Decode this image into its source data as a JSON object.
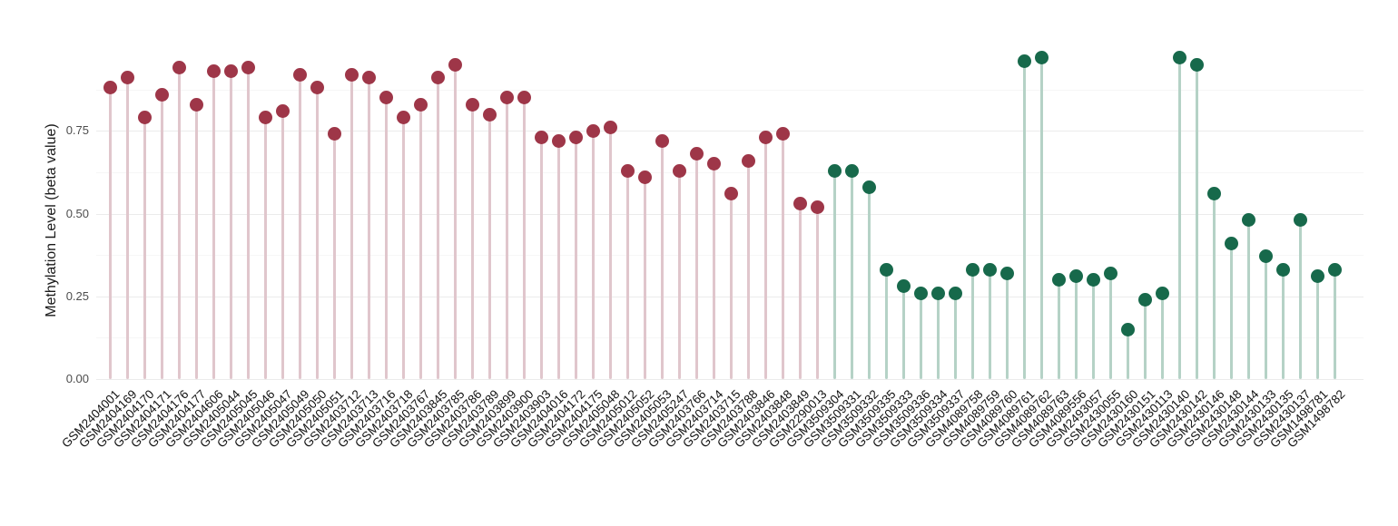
{
  "chart_data": {
    "type": "scatter",
    "variant": "lollipop-stem",
    "title": "",
    "xlabel": "",
    "ylabel": "Methylation Level (beta value)",
    "ylim": [
      0,
      1.0
    ],
    "yticks": [
      0,
      0.25,
      0.5,
      0.75
    ],
    "ytick_labels": [
      "0.00",
      "0.25",
      "0.50",
      "0.75"
    ],
    "minor_gridlines": [
      0.125,
      0.375,
      0.625,
      0.875
    ],
    "grid": "horizontal-light",
    "legend": "none",
    "groups": [
      {
        "name": "red-group",
        "dot_color": "#9e3648",
        "stem_color": "#e0c6cc"
      },
      {
        "name": "green-group",
        "dot_color": "#17694b",
        "stem_color": "#b5d2c6"
      }
    ],
    "samples": [
      {
        "id": "GSM2404001",
        "v": 0.88,
        "g": 0
      },
      {
        "id": "GSM2404169",
        "v": 0.91,
        "g": 0
      },
      {
        "id": "GSM2404170",
        "v": 0.79,
        "g": 0
      },
      {
        "id": "GSM2404171",
        "v": 0.86,
        "g": 0
      },
      {
        "id": "GSM2404176",
        "v": 0.94,
        "g": 0
      },
      {
        "id": "GSM2404177",
        "v": 0.83,
        "g": 0
      },
      {
        "id": "GSM2404606",
        "v": 0.93,
        "g": 0
      },
      {
        "id": "GSM2405044",
        "v": 0.93,
        "g": 0
      },
      {
        "id": "GSM2405045",
        "v": 0.94,
        "g": 0
      },
      {
        "id": "GSM2405046",
        "v": 0.79,
        "g": 0
      },
      {
        "id": "GSM2405047",
        "v": 0.81,
        "g": 0
      },
      {
        "id": "GSM2405049",
        "v": 0.92,
        "g": 0
      },
      {
        "id": "GSM2405050",
        "v": 0.88,
        "g": 0
      },
      {
        "id": "GSM2405051",
        "v": 0.74,
        "g": 0
      },
      {
        "id": "GSM2403712",
        "v": 0.92,
        "g": 0
      },
      {
        "id": "GSM2403713",
        "v": 0.91,
        "g": 0
      },
      {
        "id": "GSM2403716",
        "v": 0.85,
        "g": 0
      },
      {
        "id": "GSM2403718",
        "v": 0.79,
        "g": 0
      },
      {
        "id": "GSM2403767",
        "v": 0.83,
        "g": 0
      },
      {
        "id": "GSM2403845",
        "v": 0.91,
        "g": 0
      },
      {
        "id": "GSM2403785",
        "v": 0.95,
        "g": 0
      },
      {
        "id": "GSM2403786",
        "v": 0.83,
        "g": 0
      },
      {
        "id": "GSM2403789",
        "v": 0.8,
        "g": 0
      },
      {
        "id": "GSM2403899",
        "v": 0.85,
        "g": 0
      },
      {
        "id": "GSM2403900",
        "v": 0.85,
        "g": 0
      },
      {
        "id": "GSM2403903",
        "v": 0.73,
        "g": 0
      },
      {
        "id": "GSM2404016",
        "v": 0.72,
        "g": 0
      },
      {
        "id": "GSM2404172",
        "v": 0.73,
        "g": 0
      },
      {
        "id": "GSM2404175",
        "v": 0.75,
        "g": 0
      },
      {
        "id": "GSM2405048",
        "v": 0.76,
        "g": 0
      },
      {
        "id": "GSM2405012",
        "v": 0.63,
        "g": 0
      },
      {
        "id": "GSM2405052",
        "v": 0.61,
        "g": 0
      },
      {
        "id": "GSM2405053",
        "v": 0.72,
        "g": 0
      },
      {
        "id": "GSM2405247",
        "v": 0.63,
        "g": 0
      },
      {
        "id": "GSM2403766",
        "v": 0.68,
        "g": 0
      },
      {
        "id": "GSM2403714",
        "v": 0.65,
        "g": 0
      },
      {
        "id": "GSM2403715",
        "v": 0.56,
        "g": 0
      },
      {
        "id": "GSM2403788",
        "v": 0.66,
        "g": 0
      },
      {
        "id": "GSM2403846",
        "v": 0.73,
        "g": 0
      },
      {
        "id": "GSM2403848",
        "v": 0.74,
        "g": 0
      },
      {
        "id": "GSM2403849",
        "v": 0.53,
        "g": 0
      },
      {
        "id": "GSM2290013",
        "v": 0.52,
        "g": 0
      },
      {
        "id": "GSM3509304",
        "v": 0.63,
        "g": 1
      },
      {
        "id": "GSM3509331",
        "v": 0.63,
        "g": 1
      },
      {
        "id": "GSM3509332",
        "v": 0.58,
        "g": 1
      },
      {
        "id": "GSM3509335",
        "v": 0.33,
        "g": 1
      },
      {
        "id": "GSM3509333",
        "v": 0.28,
        "g": 1
      },
      {
        "id": "GSM3509336",
        "v": 0.26,
        "g": 1
      },
      {
        "id": "GSM3509334",
        "v": 0.26,
        "g": 1
      },
      {
        "id": "GSM3509337",
        "v": 0.26,
        "g": 1
      },
      {
        "id": "GSM4089758",
        "v": 0.33,
        "g": 1
      },
      {
        "id": "GSM4089759",
        "v": 0.33,
        "g": 1
      },
      {
        "id": "GSM4089760",
        "v": 0.32,
        "g": 1
      },
      {
        "id": "GSM4089761",
        "v": 0.96,
        "g": 1
      },
      {
        "id": "GSM4089762",
        "v": 0.97,
        "g": 1
      },
      {
        "id": "GSM4089763",
        "v": 0.3,
        "g": 1
      },
      {
        "id": "GSM4089556",
        "v": 0.31,
        "g": 1
      },
      {
        "id": "GSM2493057",
        "v": 0.3,
        "g": 1
      },
      {
        "id": "GSM2430055",
        "v": 0.32,
        "g": 1
      },
      {
        "id": "GSM2430160",
        "v": 0.15,
        "g": 1
      },
      {
        "id": "GSM2430151",
        "v": 0.24,
        "g": 1
      },
      {
        "id": "GSM2430113",
        "v": 0.26,
        "g": 1
      },
      {
        "id": "GSM2430140",
        "v": 0.97,
        "g": 1
      },
      {
        "id": "GSM2430142",
        "v": 0.95,
        "g": 1
      },
      {
        "id": "GSM2430146",
        "v": 0.56,
        "g": 1
      },
      {
        "id": "GSM2430148",
        "v": 0.41,
        "g": 1
      },
      {
        "id": "GSM2430144",
        "v": 0.48,
        "g": 1
      },
      {
        "id": "GSM2430133",
        "v": 0.37,
        "g": 1
      },
      {
        "id": "GSM2430135",
        "v": 0.33,
        "g": 1
      },
      {
        "id": "GSM2430137",
        "v": 0.48,
        "g": 1
      },
      {
        "id": "GSM1498781",
        "v": 0.31,
        "g": 1
      },
      {
        "id": "GSM1498782",
        "v": 0.33,
        "g": 1
      }
    ]
  },
  "colors": {
    "major_gridline": "#ebebeb",
    "minor_gridline": "#f6f6f6",
    "axis_text": "#4d4d4d",
    "label_text": "#111111"
  }
}
